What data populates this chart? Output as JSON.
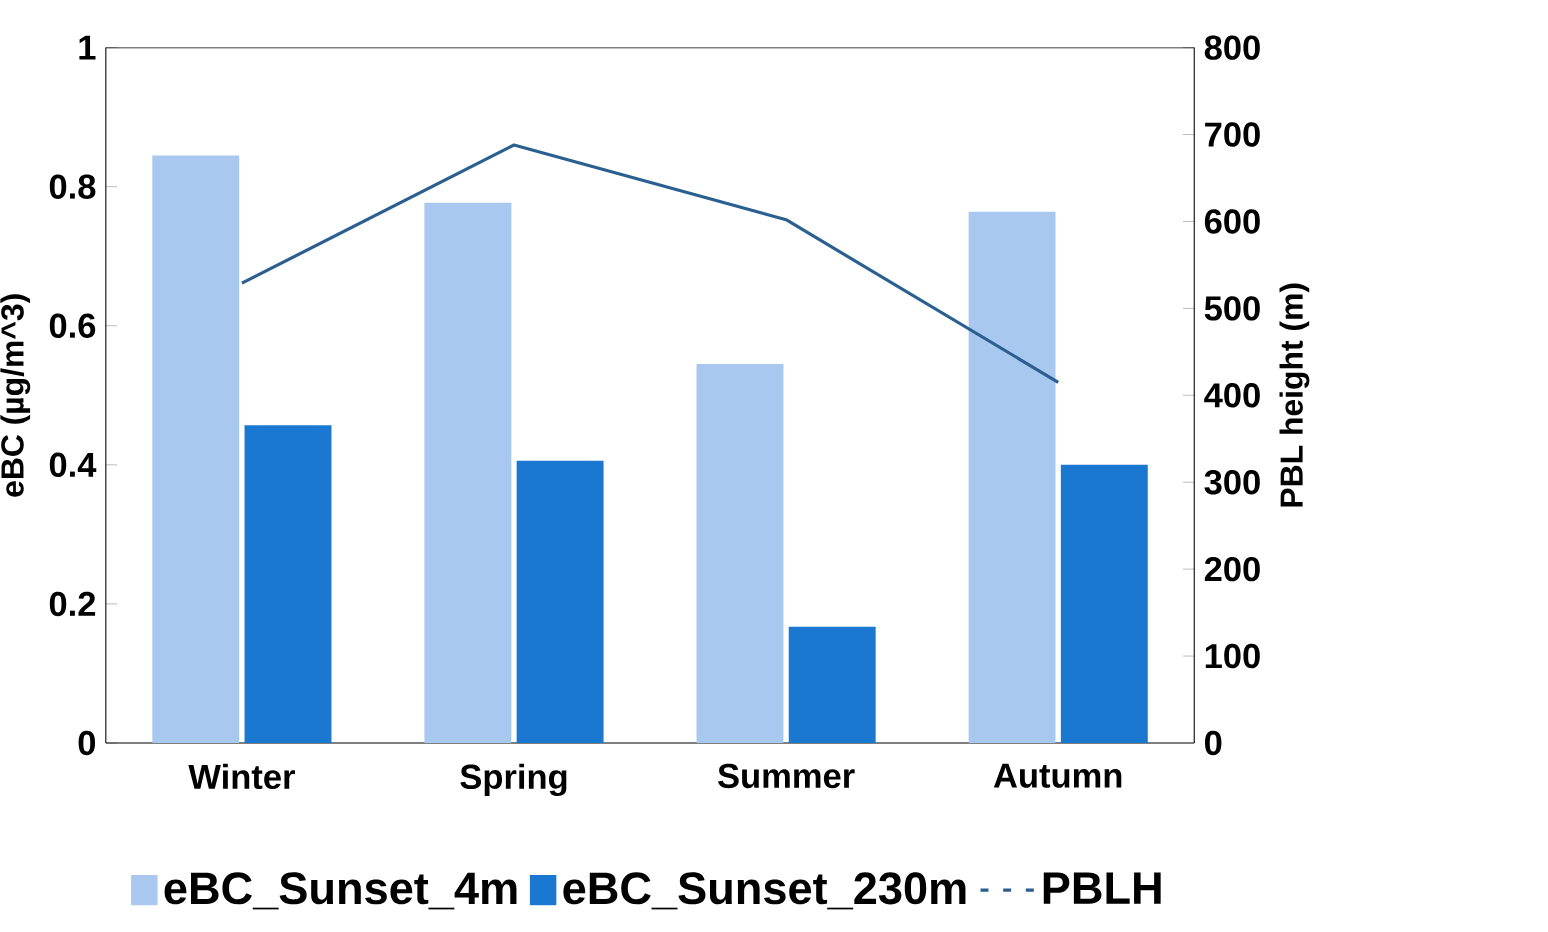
{
  "chart_data": {
    "type": "bar",
    "categories": [
      "Winter",
      "Spring",
      "Summer",
      "Autumn"
    ],
    "series": [
      {
        "name": "eBC_Sunset_4m",
        "color": "#a9c8f0",
        "values": [
          0.845,
          0.777,
          0.545,
          0.764
        ]
      },
      {
        "name": "eBC_Sunset_230m",
        "color": "#1a78d0",
        "values": [
          0.457,
          0.406,
          0.167,
          0.4
        ]
      },
      {
        "name": "PBLH",
        "type": "line",
        "axis": "y2",
        "color": "#2a5f8f",
        "values": [
          529,
          688,
          602,
          415
        ]
      }
    ],
    "ylabel": "eBC (µg/m^3)",
    "y2label": "PBL height (m)",
    "ylim": [
      0,
      1
    ],
    "yticks": [
      0,
      0.2,
      0.4,
      0.6,
      0.8,
      1
    ],
    "y2lim": [
      0,
      800
    ],
    "y2ticks": [
      0,
      100,
      200,
      300,
      400,
      500,
      600,
      700,
      800
    ],
    "legend": "bottom",
    "grid": false
  }
}
